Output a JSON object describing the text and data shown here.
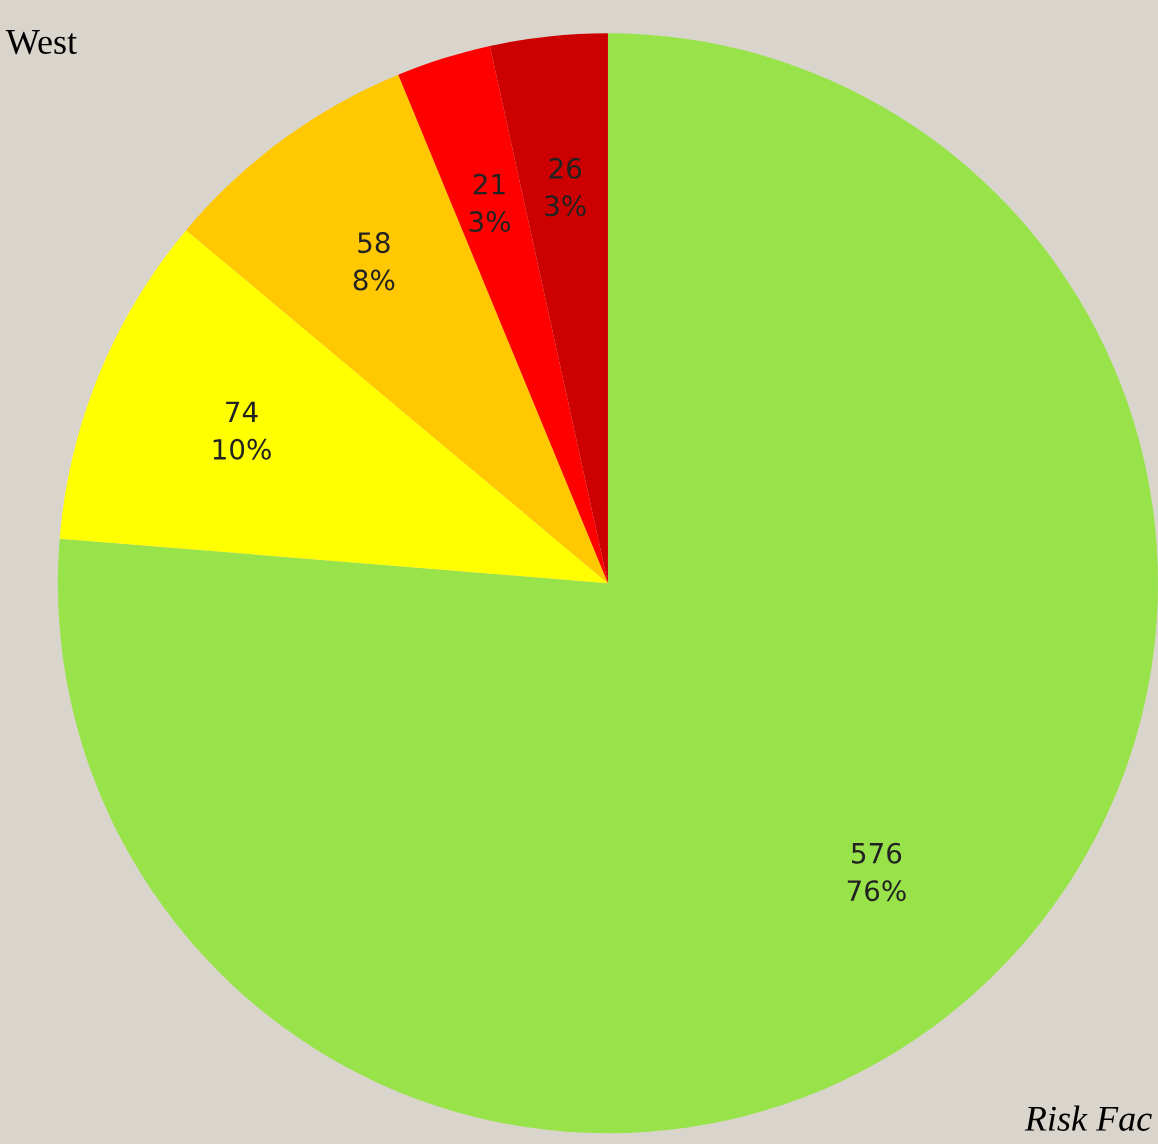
{
  "chart_data": {
    "type": "pie",
    "title": "West",
    "categories": [
      null,
      null,
      null,
      null,
      null
    ],
    "values": [
      576,
      74,
      58,
      21,
      26
    ],
    "colors": [
      "#99e34a",
      "#ffff00",
      "#ffc800",
      "#ff0000",
      "#cc0000"
    ],
    "value_labels": [
      "576\n76%",
      "74\n10%",
      "58\n8%",
      "21\n3%",
      "26\n3%"
    ],
    "annotations": [
      "Risk Fac"
    ],
    "legend": false
  }
}
